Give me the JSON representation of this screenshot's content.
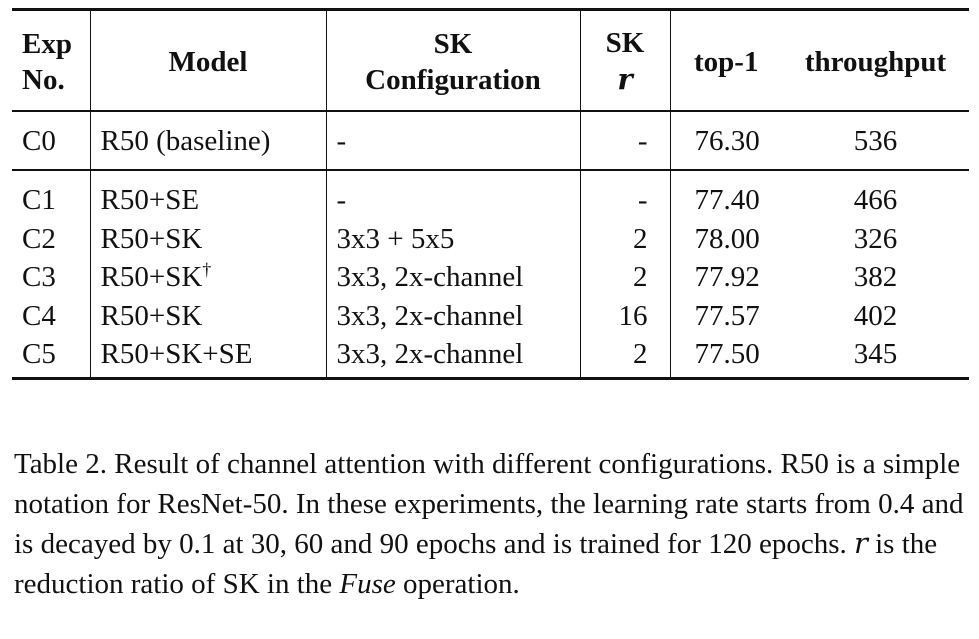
{
  "table": {
    "headers": {
      "exp_line1": "Exp",
      "exp_line2": "No.",
      "model": "Model",
      "sk_config_line1": "SK",
      "sk_config_line2": "Configuration",
      "sk_r_line1": "SK",
      "sk_r_line2": "r",
      "top1": "top-1",
      "throughput": "throughput"
    },
    "rows": [
      {
        "exp": "C0",
        "model": "R50 (baseline)",
        "model_sup": "",
        "config": "-",
        "r": "-",
        "top1": "76.30",
        "throughput": "536"
      },
      {
        "exp": "C1",
        "model": "R50+SE",
        "model_sup": "",
        "config": "-",
        "r": "-",
        "top1": "77.40",
        "throughput": "466"
      },
      {
        "exp": "C2",
        "model": "R50+SK",
        "model_sup": "",
        "config": "3x3 + 5x5",
        "r": "2",
        "top1": "78.00",
        "throughput": "326"
      },
      {
        "exp": "C3",
        "model": "R50+SK",
        "model_sup": "†",
        "config": "3x3, 2x-channel",
        "r": "2",
        "top1": "77.92",
        "throughput": "382"
      },
      {
        "exp": "C4",
        "model": "R50+SK",
        "model_sup": "",
        "config": "3x3, 2x-channel",
        "r": "16",
        "top1": "77.57",
        "throughput": "402"
      },
      {
        "exp": "C5",
        "model": "R50+SK+SE",
        "model_sup": "",
        "config": "3x3, 2x-channel",
        "r": "2",
        "top1": "77.50",
        "throughput": "345"
      }
    ]
  },
  "caption": {
    "part1": "Table 2. Result of channel attention with different configurations. R50 is a simple notation for ResNet-50. In these experiments, the learning rate starts from 0.4 and is decayed by 0.1 at 30, 60 and 90 epochs and is trained for 120 epochs. ",
    "r_symbol": "r",
    "part2": " is the reduction ratio of SK in the ",
    "fuse": "Fuse",
    "part3": " operation."
  }
}
